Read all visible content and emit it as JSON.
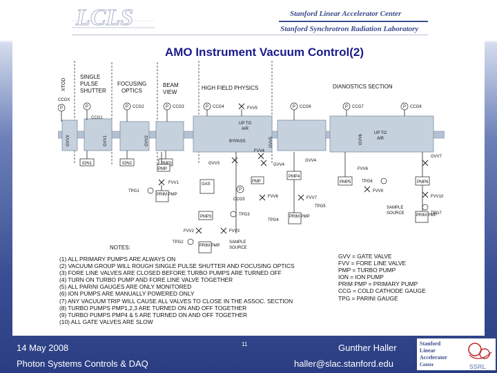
{
  "header": {
    "logo_text": "LCLS",
    "line1": "Stanford Linear Accelerator Center",
    "line2": "Stanford Synchrotron Radiation Laboratory"
  },
  "title": "AMO Instrument Vacuum Control(2)",
  "diagram": {
    "sections": {
      "xtod": "XTOD",
      "single_pulse_1": "SINGLE",
      "single_pulse_2": "PULSE",
      "single_pulse_3": "SHUTTER",
      "focusing_1": "FOCUSING",
      "focusing_2": "OPTICS",
      "beam_view_1": "BEAM",
      "beam_view_2": "VIEW",
      "high_field": "HIGH FIELD PHYSICS",
      "diagnostics": "DIANOSTICS SECTION"
    },
    "gauges": {
      "ccgx": "CCGX",
      "ccg1": "CCG1",
      "ccg2": "CCG2",
      "ccg3": "CCG3",
      "ccg4": "CCG4",
      "ccg5": "CCG5",
      "ccg6": "CCG6",
      "ccg7": "CCG7",
      "ccg8": "CCG8"
    },
    "valves": {
      "gvvx": "GVVX",
      "gvv1": "GVV1",
      "gvv2": "GVV2",
      "gvv3": "GVV3",
      "gvv4": "GVV4",
      "gvv5": "GVV5",
      "gvv6": "GVV6",
      "gvv7": "GVV7",
      "fvv1": "FVV1",
      "fvv2": "FVV2",
      "fvv3": "FVV3",
      "fvv4": "FVV4",
      "fvv5": "FVV5",
      "fvv6": "FVV6",
      "fvv7": "FVV7",
      "fvv8": "FVV8",
      "fvv9": "FVV9",
      "fvv10": "FVV10"
    },
    "pumps": {
      "ion1": "ION1",
      "ion2": "ION2",
      "pmp": "PMP",
      "pmp1": "PMP1",
      "pmp2": "PMP2",
      "pmp3": "PMP3",
      "pmp4": "PMP4",
      "pmp5": "PMP5",
      "pmp6": "PMP6",
      "prim_pmp": "PRIM PMP"
    },
    "tpg": {
      "tpg1": "TPG1",
      "tpg2": "TPG2",
      "tpg3": "TPG3",
      "tpg4": "TPG4",
      "tpg5": "TPG5",
      "tpg6": "TPG6",
      "tpg7": "TPG7"
    },
    "misc": {
      "up_to_air_1": "UP TO",
      "up_to_air_2": "AIR",
      "bypass": "BYPASS",
      "gas": "GAS",
      "sample_source_1": "SAMPLE",
      "sample_source_2": "SOURCE",
      "p": "P"
    }
  },
  "notes_title": "NOTES:",
  "notes": [
    "(1) ALL PRIMARY PUMPS ARE ALWAYS ON",
    "(2) VACUUM GROUP WILL ROUGH SINGLE PULSE SHUTTER AND FOCUSING OPTICS",
    "(3) FORE LINE VALVES ARE CLOSED BEFORE TURBO PUMPS ARE TURNED OFF",
    "(4) TURN ON TURBO PUMP AND FORE LINE VALVE TOGETHER",
    "(5) ALL PARINI GAUGES ARE ONLY MONITORED",
    "(6) ION PUMPS ARE MANUALLY POWERED ONLY",
    "(7) ANY VACUUM TRIP WILL CAUSE ALL VALVES TO CLOSE IN THE ASSOC. SECTION",
    "(8) TURBO PUMPS PMP1,2,3 ARE TURNED ON AND OFF TOGETHER",
    "(9) TURBO PUMPS PMP4 & 5 ARE TURNED ON AND OFF TOGETHER",
    "(10) ALL GATE VALVES ARE SLOW"
  ],
  "legend": [
    "GVV = GATE VALVE",
    "FVV = FORE LINE VALVE",
    "PMP = TURBO PUMP",
    "ION = ION PUMP",
    "PRIM PMP = PRIMARY PUMP",
    "CCG = COLD CATHODE GAUGE",
    "TPG = PARINI GAUGE"
  ],
  "footer": {
    "date": "14 May 2008",
    "page": "11",
    "author": "Gunther Haller",
    "org": "Photon Systems Controls & DAQ",
    "email": "haller@slac.stanford.edu",
    "slac_logo_1": "Stanford",
    "slac_logo_2": "Linear",
    "slac_logo_3": "Accelerator",
    "slac_logo_4": "Center",
    "ssrl": "SSRL"
  },
  "colors": {
    "title": "#1a1a8c",
    "brand": "#3b4a8c",
    "footer_bg": "#2a3d82",
    "chamber": "#c6d1de",
    "slac_red": "#c0282e"
  }
}
